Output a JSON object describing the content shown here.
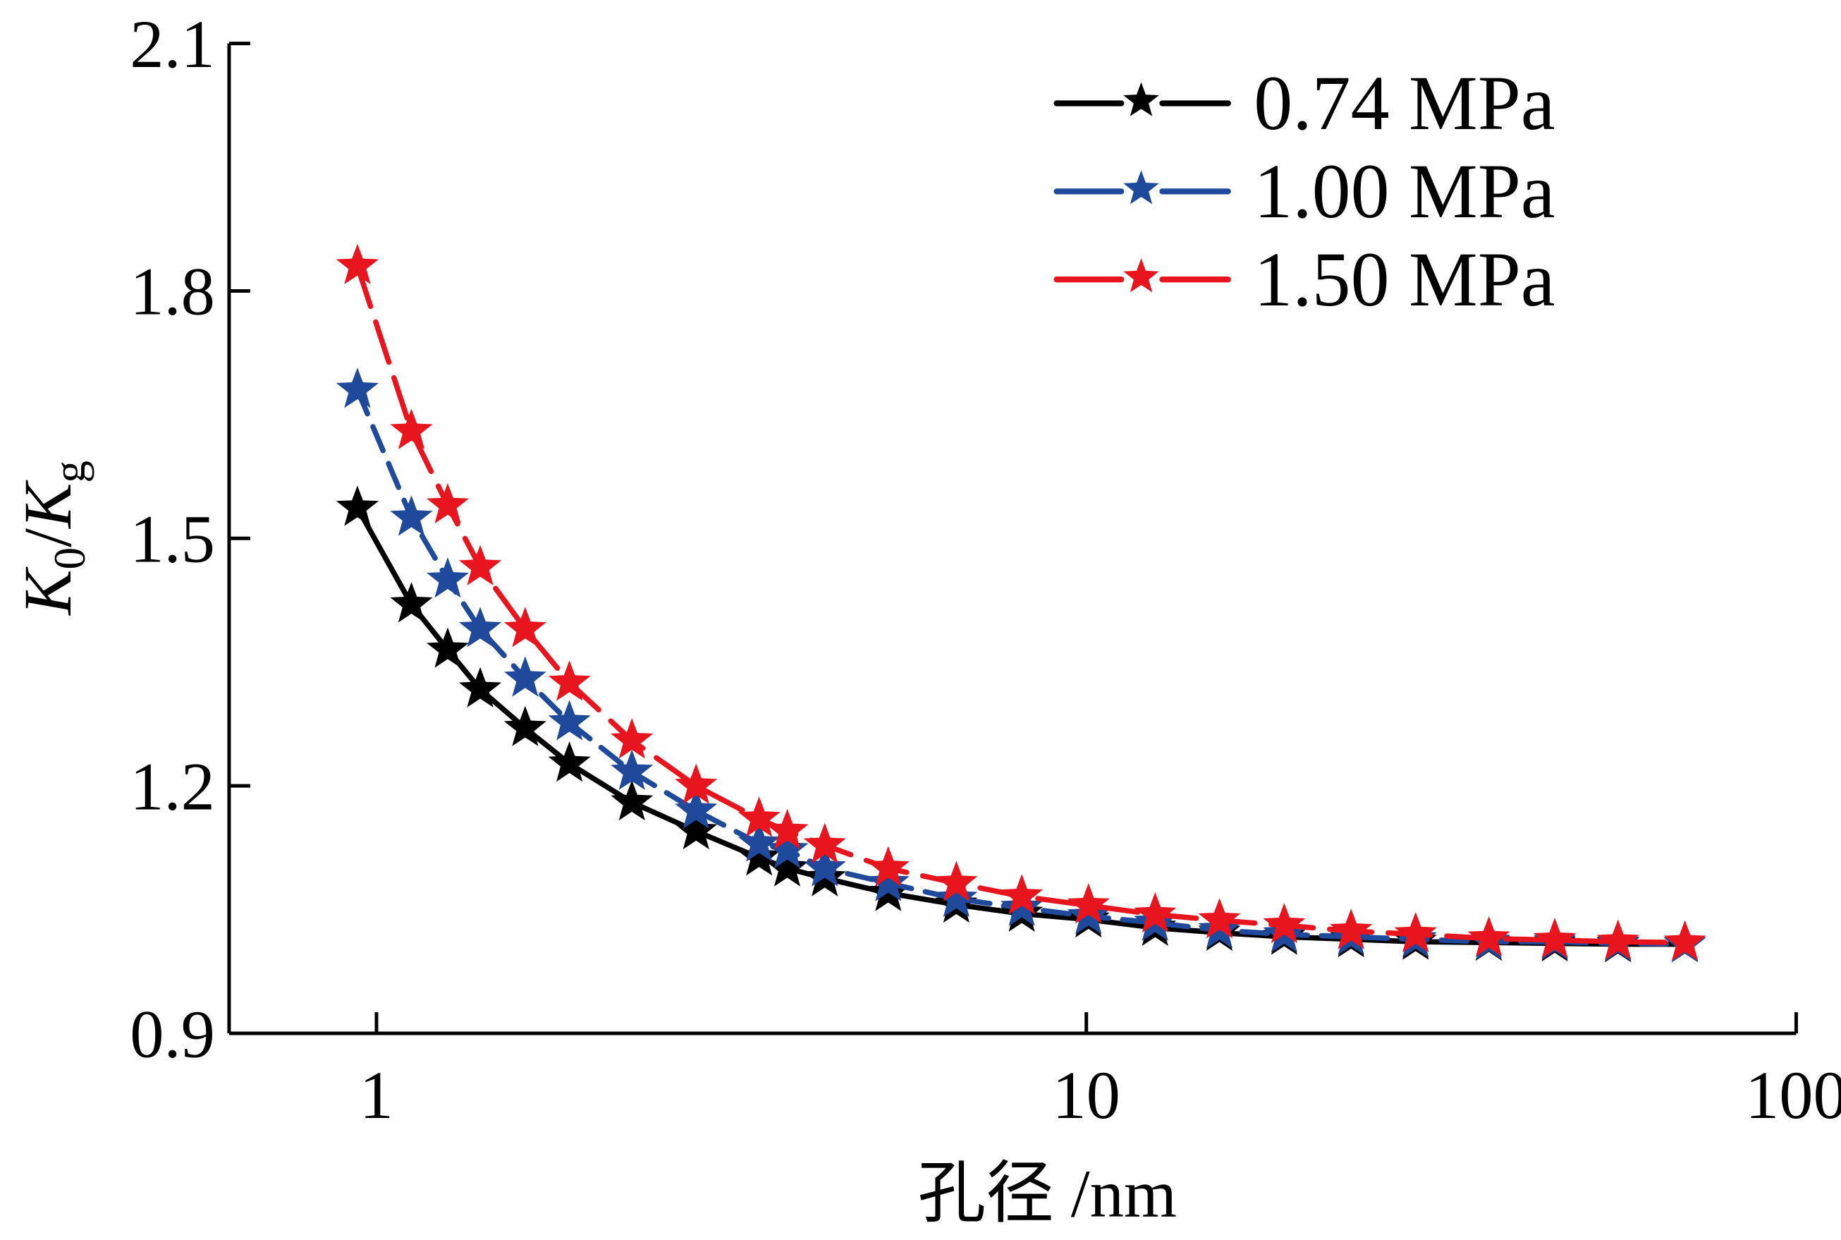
{
  "chart_data": {
    "type": "line",
    "title": "",
    "xlabel": "孔径 /nm",
    "ylabel": {
      "main": "K",
      "sub1": "0",
      "slash": "/",
      "main2": "K",
      "sub2": "g"
    },
    "xscale": "log",
    "xlim": [
      0.62,
      100
    ],
    "ylim": [
      0.9,
      2.1
    ],
    "xticks": [
      1,
      10,
      100
    ],
    "xtick_labels": [
      "1",
      "10",
      "100"
    ],
    "yticks": [
      0.9,
      1.2,
      1.5,
      1.8,
      2.1
    ],
    "ytick_labels": [
      "0.9",
      "1.2",
      "1.5",
      "1.8",
      "2.1"
    ],
    "grid": false,
    "legend_position": "top-right",
    "marker": "star",
    "x": [
      0.94,
      1.12,
      1.26,
      1.4,
      1.62,
      1.87,
      2.29,
      2.82,
      3.46,
      3.79,
      4.28,
      5.26,
      6.56,
      8.11,
      10.07,
      12.5,
      15.4,
      19.0,
      23.6,
      29.1,
      36.9,
      45.7,
      56.1,
      69.7
    ],
    "series": [
      {
        "name": "0.74 MPa",
        "color": "#000000",
        "dash": "solid",
        "values": [
          1.537,
          1.42,
          1.365,
          1.317,
          1.27,
          1.227,
          1.18,
          1.145,
          1.113,
          1.1,
          1.088,
          1.07,
          1.056,
          1.045,
          1.038,
          1.028,
          1.022,
          1.017,
          1.014,
          1.011,
          1.01,
          1.009,
          1.008,
          1.008
        ]
      },
      {
        "name": "1.00 MPa",
        "color": "#1f4a9c",
        "dash": "dashed",
        "values": [
          1.68,
          1.525,
          1.45,
          1.39,
          1.33,
          1.277,
          1.217,
          1.17,
          1.13,
          1.122,
          1.1,
          1.082,
          1.063,
          1.052,
          1.042,
          1.034,
          1.025,
          1.02,
          1.017,
          1.014,
          1.011,
          1.011,
          1.009,
          1.008
        ]
      },
      {
        "name": "1.50 MPa",
        "color": "#e8151e",
        "dash": "long-dashed",
        "values": [
          1.83,
          1.63,
          1.54,
          1.465,
          1.39,
          1.325,
          1.255,
          1.2,
          1.16,
          1.145,
          1.128,
          1.1,
          1.082,
          1.066,
          1.055,
          1.044,
          1.037,
          1.031,
          1.024,
          1.02,
          1.015,
          1.013,
          1.011,
          1.01
        ]
      }
    ]
  }
}
